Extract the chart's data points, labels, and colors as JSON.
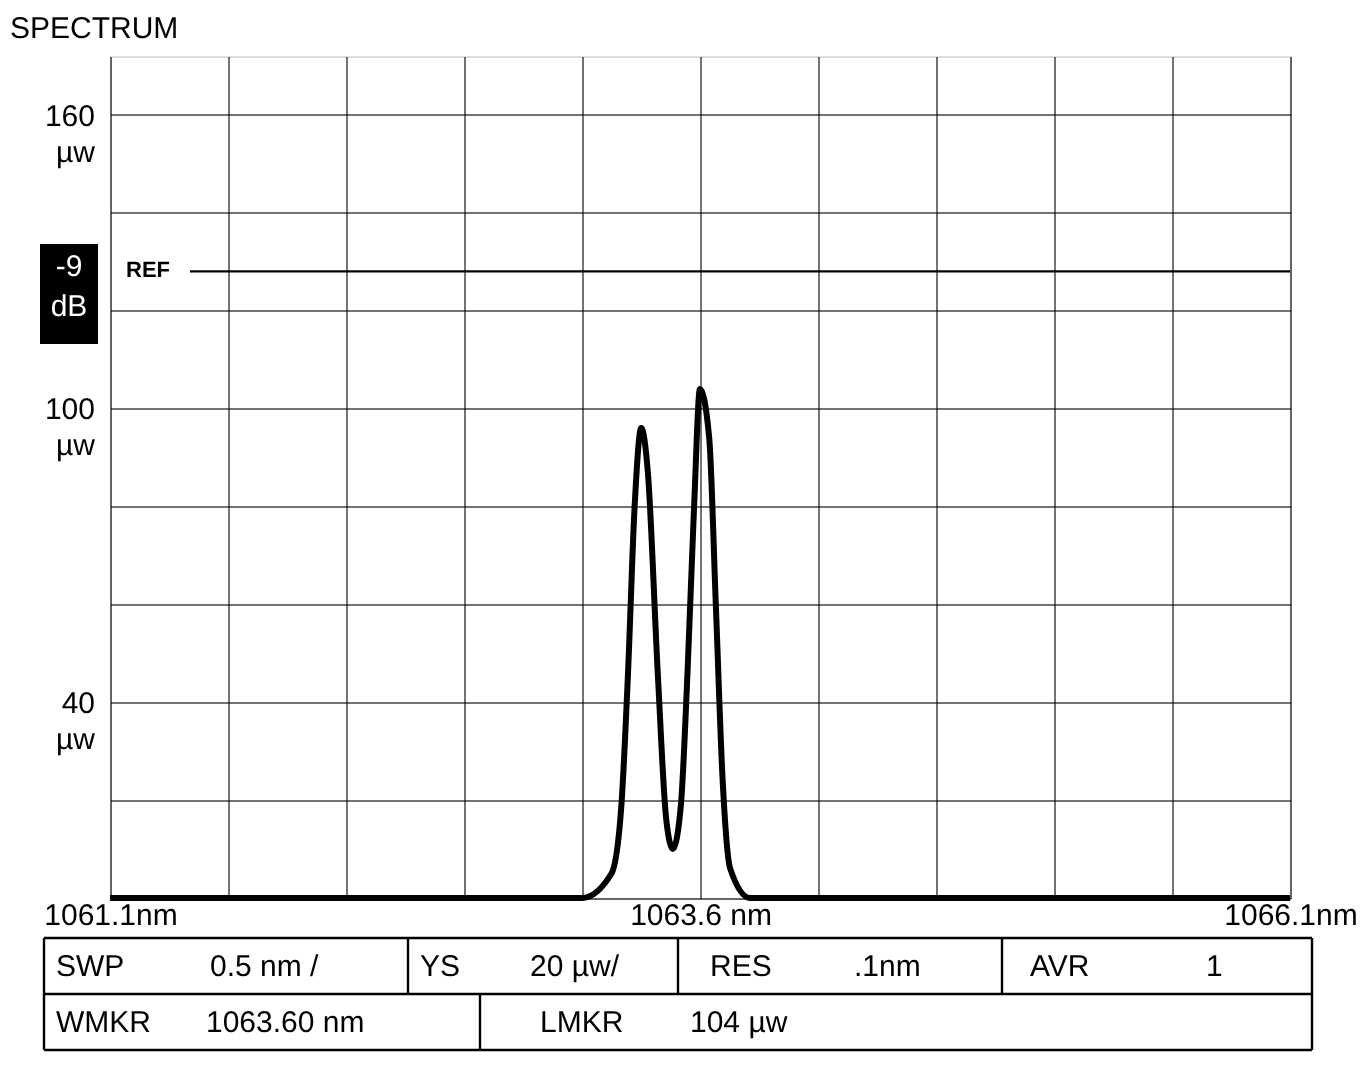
{
  "chart_data": {
    "type": "line",
    "title": "SPECTRUM",
    "x": [
      1061.1,
      1063.1,
      1063.225,
      1063.267,
      1063.295,
      1063.323,
      1063.351,
      1063.379,
      1063.421,
      1063.457,
      1063.485,
      1063.519,
      1063.547,
      1063.575,
      1063.6,
      1063.639,
      1063.667,
      1063.695,
      1063.728,
      1063.812,
      1066.1
    ],
    "values": [
      0,
      0,
      5,
      19,
      46,
      80,
      96,
      87,
      46,
      16,
      10,
      19,
      46,
      80,
      104,
      94,
      60,
      25,
      6,
      0,
      0
    ],
    "color": "#000000",
    "line_style": "solid",
    "marker": "none",
    "xlim": [
      1061.1,
      1066.1
    ],
    "xticks": [
      {
        "value": 1061.1,
        "label": "1061.1nm"
      },
      {
        "value": 1061.6,
        "label": null
      },
      {
        "value": 1062.1,
        "label": null
      },
      {
        "value": 1062.6,
        "label": null
      },
      {
        "value": 1063.1,
        "label": null
      },
      {
        "value": 1063.6,
        "label": "1063.6 nm"
      },
      {
        "value": 1064.1,
        "label": null
      },
      {
        "value": 1064.6,
        "label": null
      },
      {
        "value": 1065.1,
        "label": null
      },
      {
        "value": 1065.6,
        "label": null
      },
      {
        "value": 1066.1,
        "label": "1066.1nm"
      }
    ],
    "ylim": [
      0,
      172
    ],
    "yticks": [
      {
        "value": 0,
        "label": null
      },
      {
        "value": 20,
        "label": null
      },
      {
        "value": 40,
        "label": "40 µw"
      },
      {
        "value": 60,
        "label": null
      },
      {
        "value": 80,
        "label": null
      },
      {
        "value": 100,
        "label": "100 µw"
      },
      {
        "value": 120,
        "label": null
      },
      {
        "value": 140,
        "label": null
      },
      {
        "value": 160,
        "label": "160 µw"
      }
    ],
    "grid": true,
    "ref_lines": [
      {
        "axis": "y",
        "value": 128,
        "label": "REF",
        "color": "#000000"
      }
    ],
    "annotations": [
      "-9 dB",
      "SWP",
      "0.5 nm /",
      "YS",
      "20 µw/",
      "RES",
      ".1nm",
      "AVR",
      "1",
      "WMKR",
      "1063.60 nm",
      "LMKR",
      "104 µw"
    ]
  }
}
